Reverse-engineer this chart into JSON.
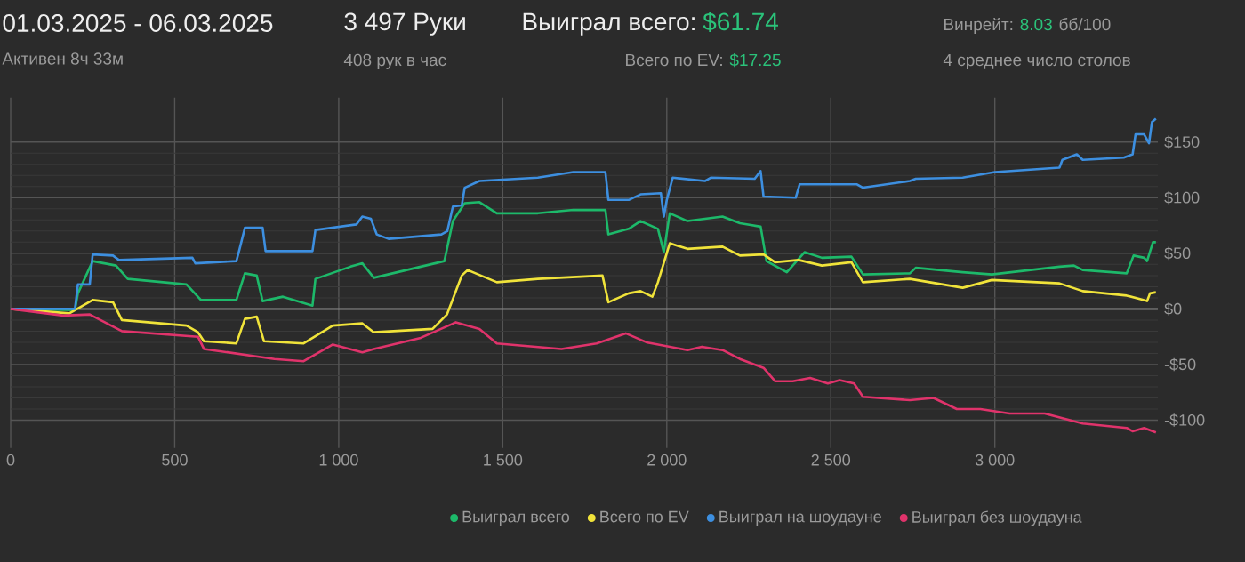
{
  "chart_data": {
    "type": "line",
    "title": "01.03.2025 - 06.03.2025",
    "subtitle": "Активен 8ч 33м",
    "annotations": [
      "3 497 Руки",
      "408 рук в час",
      "Выиграл всего:",
      "$61.74",
      "Всего по EV:",
      "$17.25",
      "Винрейт:",
      "8.03",
      "бб/100",
      "4 среднее число столов"
    ],
    "series": [
      {
        "name": "Выиграл всего",
        "color": "#1db96a",
        "x": [
          0,
          196,
          205,
          250,
          321,
          357,
          536,
          580,
          688,
          714,
          750,
          768,
          830,
          920,
          929,
          1036,
          1072,
          1107,
          1250,
          1322,
          1348,
          1384,
          1429,
          1482,
          1607,
          1715,
          1813,
          1822,
          1884,
          1920,
          1973,
          1991,
          2009,
          2063,
          2170,
          2223,
          2286,
          2304,
          2366,
          2420,
          2473,
          2563,
          2598,
          2741,
          2759,
          2902,
          2991,
          3197,
          3241,
          3268,
          3402,
          3423,
          3455,
          3464,
          3482,
          3491
        ],
        "values": [
          0,
          -1,
          14,
          43,
          39,
          27,
          22,
          8,
          8,
          32,
          30,
          7,
          11,
          3,
          27,
          38,
          41,
          28,
          38,
          43,
          79,
          95,
          96,
          86,
          86,
          89,
          89,
          67,
          72,
          79,
          72,
          51,
          86,
          79,
          83,
          77,
          74,
          43,
          33,
          51,
          46,
          47,
          31,
          32,
          37,
          33,
          31,
          38,
          39,
          35,
          32,
          48,
          46,
          43,
          60,
          60
        ]
      },
      {
        "name": "Всего по EV",
        "color": "#f0e33a",
        "x": [
          0,
          179,
          250,
          312,
          339,
          536,
          571,
          589,
          688,
          714,
          750,
          772,
          893,
          982,
          1072,
          1107,
          1286,
          1330,
          1375,
          1393,
          1482,
          1607,
          1804,
          1822,
          1884,
          1920,
          1956,
          1973,
          2009,
          2063,
          2170,
          2223,
          2295,
          2330,
          2402,
          2473,
          2563,
          2598,
          2741,
          2902,
          2991,
          3197,
          3268,
          3402,
          3455,
          3464,
          3473,
          3491
        ],
        "values": [
          0,
          -4,
          8,
          6,
          -10,
          -15,
          -21,
          -29,
          -31,
          -9,
          -7,
          -29,
          -31,
          -15,
          -13,
          -21,
          -18,
          -5,
          30,
          35,
          24,
          27,
          30,
          6,
          14,
          16,
          11,
          24,
          59,
          54,
          56,
          48,
          49,
          42,
          44,
          39,
          42,
          24,
          27,
          19,
          26,
          23,
          16,
          12,
          8,
          7,
          14,
          15
        ]
      },
      {
        "name": "Выиграл на шоудауне",
        "color": "#3d8fe0",
        "x": [
          0,
          196,
          205,
          241,
          250,
          312,
          330,
          554,
          563,
          688,
          697,
          714,
          768,
          777,
          920,
          929,
          1054,
          1072,
          1098,
          1116,
          1152,
          1313,
          1331,
          1348,
          1375,
          1384,
          1429,
          1607,
          1715,
          1813,
          1822,
          1884,
          1920,
          1982,
          1991,
          2000,
          2018,
          2116,
          2134,
          2268,
          2286,
          2295,
          2393,
          2405,
          2580,
          2598,
          2741,
          2759,
          2902,
          3000,
          3197,
          3206,
          3250,
          3268,
          3393,
          3420,
          3429,
          3455,
          3470,
          3479,
          3491
        ],
        "values": [
          0,
          0,
          22,
          22,
          49,
          48,
          44,
          46,
          41,
          43,
          53,
          73,
          73,
          52,
          52,
          71,
          76,
          83,
          81,
          67,
          63,
          67,
          70,
          92,
          93,
          109,
          115,
          118,
          123,
          123,
          98,
          98,
          103,
          104,
          83,
          98,
          118,
          115,
          118,
          117,
          124,
          101,
          100,
          112,
          112,
          109,
          115,
          117,
          118,
          123,
          127,
          134,
          139,
          134,
          136,
          139,
          157,
          157,
          149,
          168,
          171
        ]
      },
      {
        "name": "Выиграл без шоудауна",
        "color": "#e0336b",
        "x": [
          0,
          161,
          241,
          339,
          571,
          589,
          804,
          893,
          982,
          1072,
          1107,
          1250,
          1357,
          1429,
          1482,
          1679,
          1786,
          1875,
          1938,
          2063,
          2107,
          2170,
          2223,
          2295,
          2330,
          2384,
          2437,
          2491,
          2527,
          2571,
          2598,
          2741,
          2813,
          2884,
          2956,
          3045,
          3152,
          3268,
          3402,
          3420,
          3455,
          3491
        ],
        "values": [
          0,
          -6,
          -5,
          -20,
          -25,
          -36,
          -45,
          -47,
          -32,
          -39,
          -36,
          -26,
          -12,
          -18,
          -31,
          -36,
          -31,
          -22,
          -30,
          -37,
          -34,
          -37,
          -45,
          -53,
          -65,
          -65,
          -62,
          -67,
          -64,
          -67,
          -79,
          -82,
          -80,
          -90,
          -90,
          -94,
          -94,
          -103,
          -107,
          -110,
          -107,
          -111
        ]
      }
    ],
    "xlim": [
      0,
      3497
    ],
    "ylim": [
      -125,
      190
    ],
    "xticks": [
      0,
      500,
      {
        "value": 1000,
        "label": "1 000"
      },
      {
        "value": 1500,
        "label": "1 500"
      },
      {
        "value": 2000,
        "label": "2 000"
      },
      {
        "value": 2500,
        "label": "2 500"
      },
      {
        "value": 3000,
        "label": "3 000"
      }
    ],
    "yticks": [
      {
        "value": -100,
        "label": "-$100"
      },
      {
        "value": -50,
        "label": "-$50"
      },
      {
        "value": 0,
        "label": "$0"
      },
      {
        "value": 50,
        "label": "$50"
      },
      {
        "value": 100,
        "label": "$100"
      },
      {
        "value": 150,
        "label": "$150"
      }
    ],
    "ref_lines": [
      {
        "axis": "y",
        "value": 0,
        "color": "#8a8a8a"
      }
    ],
    "grid": true,
    "legend": "bottom",
    "marker": "none",
    "line_style": "solid"
  }
}
